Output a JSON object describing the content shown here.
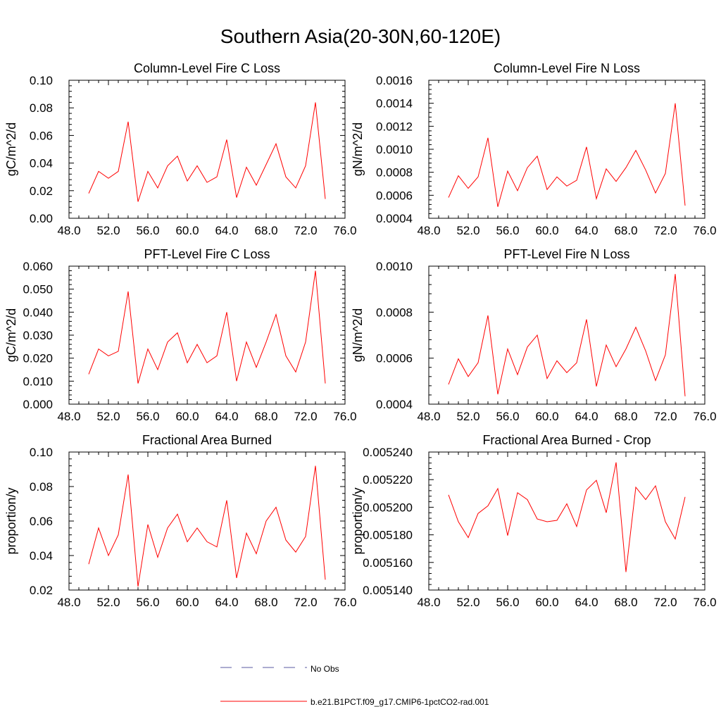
{
  "page": {
    "title": "Southern Asia(20-30N,60-120E)"
  },
  "legend": {
    "obs_label": "No Obs",
    "model_label": "b.e21.B1PCT.f09_g17.CMIP6-1pctCO2-rad.001",
    "obs_color": "#5a5aa0",
    "model_color": "#ff0000"
  },
  "chart_data": [
    {
      "type": "line",
      "title": "Column-Level Fire C Loss",
      "ylabel": "gC/m^2/d",
      "xlabel": "",
      "xlim": [
        48,
        76
      ],
      "ylim": [
        0,
        0.1
      ],
      "xticks": [
        "48.0",
        "52.0",
        "56.0",
        "60.0",
        "64.0",
        "68.0",
        "72.0",
        "76.0"
      ],
      "yticks": [
        "0.00",
        "0.02",
        "0.04",
        "0.06",
        "0.08",
        "0.10"
      ],
      "series": [
        {
          "name": "b.e21.B1PCT.f09_g17.CMIP6-1pctCO2-rad.001",
          "x": [
            50,
            51,
            52,
            53,
            54,
            55,
            56,
            57,
            58,
            59,
            60,
            61,
            62,
            63,
            64,
            65,
            66,
            67,
            68,
            69,
            70,
            71,
            72,
            73,
            74
          ],
          "values": [
            0.018,
            0.034,
            0.029,
            0.034,
            0.07,
            0.012,
            0.034,
            0.022,
            0.038,
            0.045,
            0.027,
            0.038,
            0.026,
            0.03,
            0.057,
            0.015,
            0.037,
            0.024,
            0.039,
            0.054,
            0.03,
            0.022,
            0.038,
            0.084,
            0.014
          ]
        }
      ]
    },
    {
      "type": "line",
      "title": "Column-Level Fire N Loss",
      "ylabel": "gN/m^2/d",
      "xlabel": "",
      "xlim": [
        48,
        76
      ],
      "ylim": [
        0.0004,
        0.0016
      ],
      "xticks": [
        "48.0",
        "52.0",
        "56.0",
        "60.0",
        "64.0",
        "68.0",
        "72.0",
        "76.0"
      ],
      "yticks": [
        "0.0004",
        "0.0006",
        "0.0008",
        "0.0010",
        "0.0012",
        "0.0014",
        "0.0016"
      ],
      "series": [
        {
          "name": "b.e21.B1PCT.f09_g17.CMIP6-1pctCO2-rad.001",
          "x": [
            50,
            51,
            52,
            53,
            54,
            55,
            56,
            57,
            58,
            59,
            60,
            61,
            62,
            63,
            64,
            65,
            66,
            67,
            68,
            69,
            70,
            71,
            72,
            73,
            74
          ],
          "values": [
            0.00058,
            0.00077,
            0.00066,
            0.00076,
            0.0011,
            0.0005,
            0.00081,
            0.00064,
            0.00084,
            0.00094,
            0.00065,
            0.00076,
            0.00068,
            0.00073,
            0.00102,
            0.00057,
            0.00083,
            0.00072,
            0.00084,
            0.00099,
            0.00082,
            0.00062,
            0.00079,
            0.0014,
            0.00051
          ]
        }
      ]
    },
    {
      "type": "line",
      "title": "PFT-Level Fire C Loss",
      "ylabel": "gC/m^2/d",
      "xlabel": "",
      "xlim": [
        48,
        76
      ],
      "ylim": [
        0,
        0.06
      ],
      "xticks": [
        "48.0",
        "52.0",
        "56.0",
        "60.0",
        "64.0",
        "68.0",
        "72.0",
        "76.0"
      ],
      "yticks": [
        "0.000",
        "0.010",
        "0.020",
        "0.030",
        "0.040",
        "0.050",
        "0.060"
      ],
      "series": [
        {
          "name": "b.e21.B1PCT.f09_g17.CMIP6-1pctCO2-rad.001",
          "x": [
            50,
            51,
            52,
            53,
            54,
            55,
            56,
            57,
            58,
            59,
            60,
            61,
            62,
            63,
            64,
            65,
            66,
            67,
            68,
            69,
            70,
            71,
            72,
            73,
            74
          ],
          "values": [
            0.013,
            0.024,
            0.021,
            0.023,
            0.049,
            0.009,
            0.024,
            0.015,
            0.027,
            0.031,
            0.018,
            0.026,
            0.018,
            0.021,
            0.04,
            0.01,
            0.027,
            0.016,
            0.027,
            0.039,
            0.021,
            0.014,
            0.027,
            0.058,
            0.009
          ]
        }
      ]
    },
    {
      "type": "line",
      "title": "PFT-Level Fire N Loss",
      "ylabel": "gN/m^2/d",
      "xlabel": "",
      "xlim": [
        48,
        76
      ],
      "ylim": [
        0.0004,
        0.0011
      ],
      "xticks": [
        "48.0",
        "52.0",
        "56.0",
        "60.0",
        "64.0",
        "68.0",
        "72.0",
        "76.0"
      ],
      "yticks": [
        "0.0004",
        "0.0006",
        "0.0008",
        "0.0010"
      ],
      "series": [
        {
          "name": "b.e21.B1PCT.f09_g17.CMIP6-1pctCO2-rad.001",
          "x": [
            50,
            51,
            52,
            53,
            54,
            55,
            56,
            57,
            58,
            59,
            60,
            61,
            62,
            63,
            64,
            65,
            66,
            67,
            68,
            69,
            70,
            71,
            72,
            73,
            74
          ],
          "values": [
            0.0005,
            0.00063,
            0.00054,
            0.00061,
            0.00085,
            0.00045,
            0.00068,
            0.00055,
            0.00069,
            0.00075,
            0.00053,
            0.00062,
            0.00056,
            0.00061,
            0.00083,
            0.00049,
            0.0007,
            0.00059,
            0.00068,
            0.00079,
            0.00067,
            0.00052,
            0.00065,
            0.00106,
            0.00044
          ]
        }
      ]
    },
    {
      "type": "line",
      "title": "Fractional Area Burned",
      "ylabel": "proportion/y",
      "xlabel": "",
      "xlim": [
        48,
        76
      ],
      "ylim": [
        0.02,
        0.1
      ],
      "xticks": [
        "48.0",
        "52.0",
        "56.0",
        "60.0",
        "64.0",
        "68.0",
        "72.0",
        "76.0"
      ],
      "yticks": [
        "0.02",
        "0.04",
        "0.06",
        "0.08",
        "0.10"
      ],
      "series": [
        {
          "name": "b.e21.B1PCT.f09_g17.CMIP6-1pctCO2-rad.001",
          "x": [
            50,
            51,
            52,
            53,
            54,
            55,
            56,
            57,
            58,
            59,
            60,
            61,
            62,
            63,
            64,
            65,
            66,
            67,
            68,
            69,
            70,
            71,
            72,
            73,
            74
          ],
          "values": [
            0.035,
            0.056,
            0.04,
            0.052,
            0.087,
            0.022,
            0.058,
            0.039,
            0.056,
            0.064,
            0.048,
            0.056,
            0.048,
            0.045,
            0.072,
            0.027,
            0.053,
            0.041,
            0.06,
            0.068,
            0.049,
            0.042,
            0.051,
            0.092,
            0.026
          ]
        }
      ]
    },
    {
      "type": "line",
      "title": "Fractional Area Burned - Crop",
      "ylabel": "proportion/y",
      "xlabel": "",
      "xlim": [
        48,
        76
      ],
      "ylim": [
        0.00514,
        0.00524
      ],
      "xticks": [
        "48.0",
        "52.0",
        "56.0",
        "60.0",
        "64.0",
        "68.0",
        "72.0",
        "76.0"
      ],
      "yticks": [
        "0.005140",
        "0.005160",
        "0.005180",
        "0.005200",
        "0.005220",
        "0.005240"
      ],
      "series": [
        {
          "name": "b.e21.B1PCT.f09_g17.CMIP6-1pctCO2-rad.001",
          "x": [
            50,
            51,
            52,
            53,
            54,
            55,
            56,
            57,
            58,
            59,
            60,
            61,
            62,
            63,
            64,
            65,
            66,
            67,
            68,
            69,
            70,
            71,
            72,
            73,
            74
          ],
          "values": [
            0.005209,
            0.0051895,
            0.005178,
            0.0051955,
            0.005201,
            0.0052135,
            0.0051795,
            0.0052105,
            0.0052055,
            0.0051915,
            0.0051895,
            0.0051905,
            0.0052025,
            0.005186,
            0.0052125,
            0.0052195,
            0.005196,
            0.0052325,
            0.005153,
            0.0052145,
            0.0052055,
            0.0052155,
            0.0051895,
            0.005177,
            0.0052075
          ]
        }
      ]
    }
  ]
}
